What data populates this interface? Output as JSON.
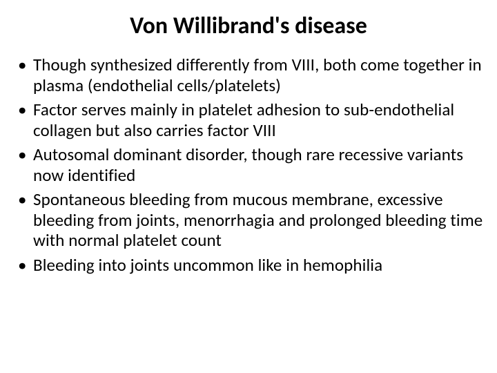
{
  "slide": {
    "title": "Von Willibrand's disease",
    "title_fontsize": 34,
    "title_fontweight": 700,
    "title_color": "#000000",
    "background_color": "#ffffff",
    "bullet_fontsize": 25,
    "bullet_color": "#000000",
    "bullets": [
      "Though synthesized differently from VIII, both come together in plasma (endothelial cells/platelets)",
      "Factor serves mainly in platelet adhesion to sub-endothelial collagen but also carries factor VIII",
      "Autosomal dominant disorder, though rare recessive variants now identified",
      "Spontaneous bleeding from mucous membrane, excessive bleeding from joints, menorrhagia and prolonged bleeding time with normal platelet count",
      "Bleeding into joints uncommon like in hemophilia"
    ]
  }
}
